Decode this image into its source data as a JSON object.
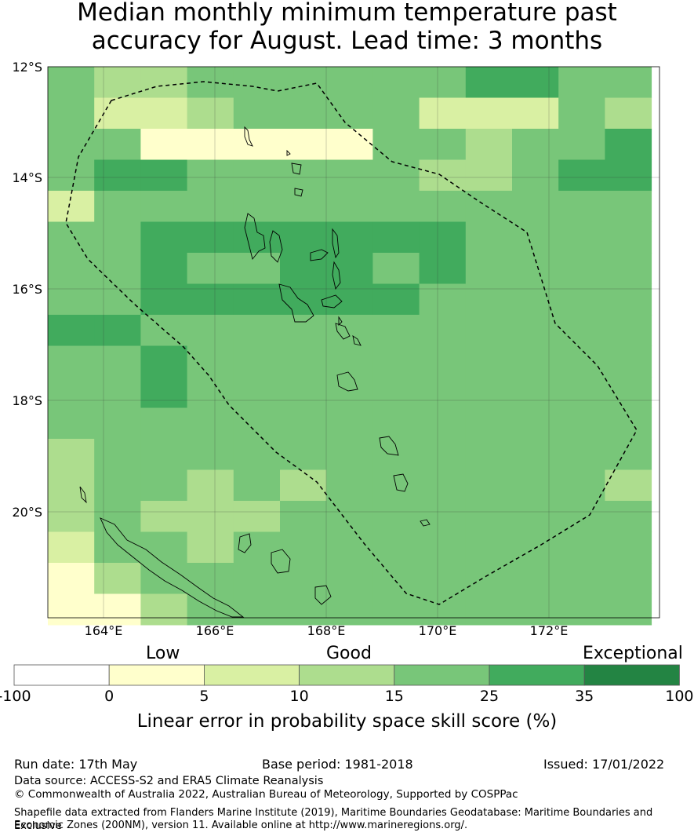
{
  "title_line1": "Median monthly minimum temperature past",
  "title_line2": "accuracy for August. Lead time: 3 months",
  "map": {
    "lat_labels": [
      "12°S",
      "14°S",
      "16°S",
      "18°S",
      "20°S"
    ],
    "lon_labels": [
      "164°E",
      "166°E",
      "168°E",
      "170°E",
      "172°E"
    ]
  },
  "colorbar": {
    "categories": [
      "Low",
      "Good",
      "Exceptional"
    ],
    "ticks": [
      "-100",
      "0",
      "5",
      "10",
      "15",
      "25",
      "35",
      "100"
    ],
    "colors": [
      "#ffffff",
      "#ffffcc",
      "#d9f0a3",
      "#addd8e",
      "#78c679",
      "#41ab5d",
      "#238443"
    ],
    "label": "Linear error in probability space skill score (%)"
  },
  "footer": {
    "run_date": "Run date: 17th May",
    "base_period": "Base period: 1981-2018",
    "issued": "Issued: 17/01/2022",
    "data_source": "Data source: ACCESS-S2 and ERA5 Climate Reanalysis",
    "copyright": "© Commonwealth of Australia 2022, Australian Bureau of Meteorology, Supported by COSPPac",
    "shapefile_line1": "Shapefile data extracted from Flanders Marine Institute (2019), Maritime Boundaries Geodatabase: Maritime Boundaries and Exclusive",
    "shapefile_line2": "Economic Zones (200NM), version 11. Available online at http://www.marineregions.org/."
  }
}
